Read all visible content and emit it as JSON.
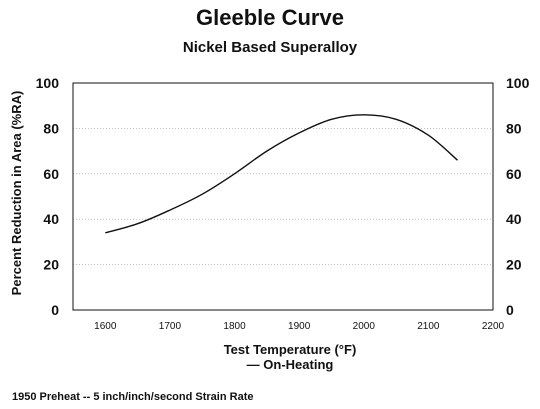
{
  "chart_data": {
    "type": "line",
    "title": "Gleeble Curve",
    "subtitle": "Nickel Based Superalloy",
    "xlabel": "Test Temperature (°F)",
    "xlabel_line2": "— On-Heating",
    "ylabel": "Percent Reduction in Area (%RA)",
    "xlim": [
      1550,
      2200
    ],
    "ylim": [
      0,
      100
    ],
    "x_ticks": [
      1600,
      1700,
      1800,
      1900,
      2000,
      2100,
      2200
    ],
    "y_ticks": [
      0,
      20,
      40,
      60,
      80,
      100
    ],
    "grid": "horizontal-dotted",
    "secondary_y_axis": true,
    "series": [
      {
        "x": [
          1600,
          1650,
          1700,
          1750,
          1800,
          1850,
          1900,
          1950,
          2000,
          2050,
          2100,
          2145
        ],
        "y": [
          34,
          38,
          44,
          51,
          60,
          70,
          78,
          84,
          86,
          84,
          77,
          66
        ]
      }
    ],
    "footnote": "1950 Preheat -- 5 inch/inch/second Strain Rate"
  }
}
